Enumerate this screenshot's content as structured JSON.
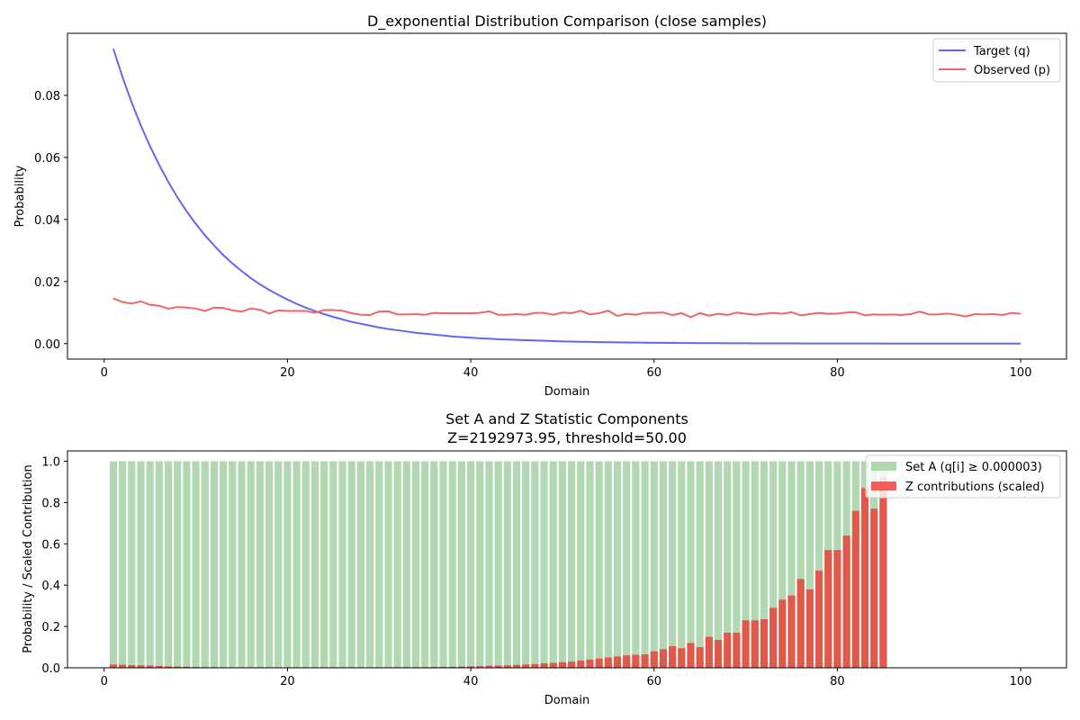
{
  "chart_data": [
    {
      "type": "line",
      "title": "D_exponential Distribution Comparison (close samples)",
      "xlabel": "Domain",
      "ylabel": "Probability",
      "xlim": [
        -4,
        105
      ],
      "ylim": [
        -0.005,
        0.1
      ],
      "xticks": [
        0,
        20,
        40,
        60,
        80,
        100
      ],
      "xtick_labels": [
        "0",
        "20",
        "40",
        "60",
        "80",
        "100"
      ],
      "yticks": [
        0.0,
        0.02,
        0.04,
        0.06,
        0.08
      ],
      "ytick_labels": [
        "0.00",
        "0.02",
        "0.04",
        "0.06",
        "0.08"
      ],
      "legend_position": "upper right",
      "grid": false,
      "series": [
        {
          "name": "Target (q)",
          "color": "#6666ee",
          "x": [
            1,
            2,
            3,
            4,
            5,
            6,
            7,
            8,
            9,
            10,
            11,
            12,
            13,
            14,
            15,
            16,
            17,
            18,
            19,
            20,
            21,
            22,
            23,
            24,
            25,
            26,
            27,
            28,
            29,
            30,
            31,
            32,
            33,
            34,
            35,
            36,
            37,
            38,
            39,
            40,
            41,
            42,
            43,
            44,
            45,
            46,
            47,
            48,
            49,
            50,
            51,
            52,
            53,
            54,
            55,
            56,
            57,
            58,
            59,
            60,
            61,
            62,
            63,
            64,
            65,
            66,
            67,
            68,
            69,
            70,
            71,
            72,
            73,
            74,
            75,
            76,
            77,
            78,
            79,
            80,
            81,
            82,
            83,
            84,
            85,
            86,
            87,
            88,
            89,
            90,
            91,
            92,
            93,
            94,
            95,
            96,
            97,
            98,
            99,
            100
          ],
          "y": [
            0.095,
            0.0859,
            0.0777,
            0.0703,
            0.0636,
            0.0576,
            0.0521,
            0.0471,
            0.0426,
            0.0386,
            0.0349,
            0.0316,
            0.0285,
            0.0258,
            0.0234,
            0.0211,
            0.0191,
            0.0173,
            0.0157,
            0.0142,
            0.0128,
            0.0116,
            0.0105,
            0.0095,
            0.0086,
            0.0078,
            0.007,
            0.0064,
            0.0058,
            0.0052,
            0.0047,
            0.0043,
            0.0039,
            0.0035,
            0.0032,
            0.0029,
            0.0026,
            0.0023,
            0.0021,
            0.0019,
            0.0017,
            0.0016,
            0.0014,
            0.0013,
            0.0012,
            0.0011,
            0.001,
            0.0009,
            0.0008,
            0.0007,
            0.00065,
            0.00059,
            0.00053,
            0.00048,
            0.00044,
            0.0004,
            0.00036,
            0.00032,
            0.00029,
            0.00026,
            0.00024,
            0.00022,
            0.0002,
            0.00018,
            0.00016,
            0.00014,
            0.00013,
            0.00012,
            0.00011,
            0.0001,
            9e-05,
            8e-05,
            7e-05,
            6.5e-05,
            5.9e-05,
            5.3e-05,
            4.8e-05,
            4.4e-05,
            4e-05,
            3.6e-05,
            3.2e-05,
            2.9e-05,
            2.6e-05,
            2.4e-05,
            2.2e-05,
            2e-05,
            1.8e-05,
            1.6e-05,
            1.4e-05,
            1.3e-05,
            1.2e-05,
            1.1e-05,
            1e-05,
            9e-06,
            8e-06,
            7e-06,
            6e-06,
            6e-06,
            5e-06,
            5e-06
          ]
        },
        {
          "name": "Observed (p)",
          "color": "#ee6666",
          "x": [
            1,
            2,
            3,
            4,
            5,
            6,
            7,
            8,
            9,
            10,
            11,
            12,
            13,
            14,
            15,
            16,
            17,
            18,
            19,
            20,
            21,
            22,
            23,
            24,
            25,
            26,
            27,
            28,
            29,
            30,
            31,
            32,
            33,
            34,
            35,
            36,
            37,
            38,
            39,
            40,
            41,
            42,
            43,
            44,
            45,
            46,
            47,
            48,
            49,
            50,
            51,
            52,
            53,
            54,
            55,
            56,
            57,
            58,
            59,
            60,
            61,
            62,
            63,
            64,
            65,
            66,
            67,
            68,
            69,
            70,
            71,
            72,
            73,
            74,
            75,
            76,
            77,
            78,
            79,
            80,
            81,
            82,
            83,
            84,
            85,
            86,
            87,
            88,
            89,
            90,
            91,
            92,
            93,
            94,
            95,
            96,
            97,
            98,
            99,
            100
          ],
          "y": [
            0.0146,
            0.0134,
            0.0129,
            0.0136,
            0.0125,
            0.0122,
            0.0112,
            0.0118,
            0.0116,
            0.0113,
            0.0105,
            0.0116,
            0.0115,
            0.0107,
            0.0103,
            0.0113,
            0.0109,
            0.0097,
            0.0107,
            0.0105,
            0.0105,
            0.0105,
            0.0099,
            0.0108,
            0.0108,
            0.0106,
            0.0098,
            0.0093,
            0.0092,
            0.0103,
            0.0104,
            0.0094,
            0.0094,
            0.0095,
            0.0093,
            0.0099,
            0.0098,
            0.0098,
            0.0098,
            0.0098,
            0.0099,
            0.0104,
            0.0093,
            0.0093,
            0.0095,
            0.0093,
            0.0099,
            0.0099,
            0.0093,
            0.01,
            0.0098,
            0.0106,
            0.0094,
            0.0098,
            0.0106,
            0.0089,
            0.0096,
            0.0093,
            0.0099,
            0.0099,
            0.01,
            0.0092,
            0.0098,
            0.0085,
            0.0098,
            0.009,
            0.0096,
            0.0092,
            0.01,
            0.0096,
            0.0093,
            0.0096,
            0.0099,
            0.0096,
            0.0101,
            0.0091,
            0.0095,
            0.0099,
            0.0096,
            0.0097,
            0.01,
            0.0101,
            0.0091,
            0.0094,
            0.0093,
            0.0094,
            0.0092,
            0.0095,
            0.0103,
            0.0094,
            0.0094,
            0.0097,
            0.0093,
            0.0087,
            0.0095,
            0.0094,
            0.0095,
            0.0092,
            0.0099,
            0.0096
          ]
        }
      ]
    },
    {
      "type": "bar",
      "title": "Set A and Z Statistic Components",
      "subtitle": "Z=2192973.95, threshold=50.00",
      "xlabel": "Domain",
      "ylabel": "Probability / Scaled Contribution",
      "xlim": [
        -4,
        105
      ],
      "ylim": [
        0,
        1.05
      ],
      "xticks": [
        0,
        20,
        40,
        60,
        80,
        100
      ],
      "xtick_labels": [
        "0",
        "20",
        "40",
        "60",
        "80",
        "100"
      ],
      "yticks": [
        0.0,
        0.2,
        0.4,
        0.6,
        0.8,
        1.0
      ],
      "ytick_labels": [
        "0.0",
        "0.2",
        "0.4",
        "0.6",
        "0.8",
        "1.0"
      ],
      "legend_position": "upper right",
      "grid": false,
      "series": [
        {
          "name": "Set A (q[i] ≥ 0.000003)",
          "color": "#b2d8b2",
          "x": [
            1,
            2,
            3,
            4,
            5,
            6,
            7,
            8,
            9,
            10,
            11,
            12,
            13,
            14,
            15,
            16,
            17,
            18,
            19,
            20,
            21,
            22,
            23,
            24,
            25,
            26,
            27,
            28,
            29,
            30,
            31,
            32,
            33,
            34,
            35,
            36,
            37,
            38,
            39,
            40,
            41,
            42,
            43,
            44,
            45,
            46,
            47,
            48,
            49,
            50,
            51,
            52,
            53,
            54,
            55,
            56,
            57,
            58,
            59,
            60,
            61,
            62,
            63,
            64,
            65,
            66,
            67,
            68,
            69,
            70,
            71,
            72,
            73,
            74,
            75,
            76,
            77,
            78,
            79,
            80,
            81,
            82,
            83,
            84,
            85
          ],
          "values": [
            1,
            1,
            1,
            1,
            1,
            1,
            1,
            1,
            1,
            1,
            1,
            1,
            1,
            1,
            1,
            1,
            1,
            1,
            1,
            1,
            1,
            1,
            1,
            1,
            1,
            1,
            1,
            1,
            1,
            1,
            1,
            1,
            1,
            1,
            1,
            1,
            1,
            1,
            1,
            1,
            1,
            1,
            1,
            1,
            1,
            1,
            1,
            1,
            1,
            1,
            1,
            1,
            1,
            1,
            1,
            1,
            1,
            1,
            1,
            1,
            1,
            1,
            1,
            1,
            1,
            1,
            1,
            1,
            1,
            1,
            1,
            1,
            1,
            1,
            1,
            1,
            1,
            1,
            1,
            1,
            1,
            1,
            1,
            1,
            1
          ]
        },
        {
          "name": "Z contributions (scaled)",
          "color": "#e35246",
          "x": [
            1,
            2,
            3,
            4,
            5,
            6,
            7,
            8,
            9,
            10,
            11,
            12,
            13,
            14,
            15,
            16,
            17,
            18,
            19,
            20,
            21,
            22,
            23,
            24,
            25,
            26,
            27,
            28,
            29,
            30,
            31,
            32,
            33,
            34,
            35,
            36,
            37,
            38,
            39,
            40,
            41,
            42,
            43,
            44,
            45,
            46,
            47,
            48,
            49,
            50,
            51,
            52,
            53,
            54,
            55,
            56,
            57,
            58,
            59,
            60,
            61,
            62,
            63,
            64,
            65,
            66,
            67,
            68,
            69,
            70,
            71,
            72,
            73,
            74,
            75,
            76,
            77,
            78,
            79,
            80,
            81,
            82,
            83,
            84,
            85
          ],
          "values": [
            0.016,
            0.015,
            0.013,
            0.012,
            0.011,
            0.009,
            0.007,
            0.006,
            0.005,
            0.004,
            0.003,
            0.003,
            0.002,
            0.002,
            0.002,
            0.001,
            0,
            0,
            0,
            0,
            0,
            0,
            0,
            0,
            0,
            0,
            0,
            0,
            0,
            0.001,
            0.002,
            0.002,
            0.003,
            0.003,
            0.003,
            0.004,
            0.004,
            0.005,
            0.006,
            0.007,
            0.008,
            0.01,
            0.011,
            0.012,
            0.014,
            0.016,
            0.018,
            0.022,
            0.024,
            0.027,
            0.03,
            0.035,
            0.04,
            0.045,
            0.05,
            0.055,
            0.06,
            0.063,
            0.065,
            0.08,
            0.09,
            0.105,
            0.095,
            0.12,
            0.1,
            0.15,
            0.135,
            0.17,
            0.17,
            0.23,
            0.23,
            0.235,
            0.29,
            0.33,
            0.35,
            0.43,
            0.38,
            0.47,
            0.57,
            0.57,
            0.64,
            0.76,
            0.87,
            0.77,
            0.92
          ]
        }
      ]
    }
  ]
}
